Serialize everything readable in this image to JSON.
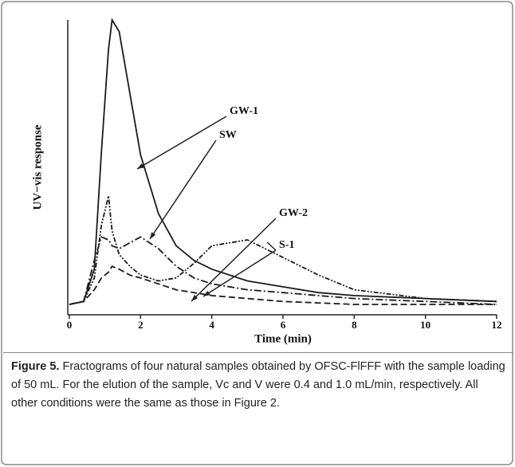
{
  "chart_data": {
    "type": "line",
    "xlabel": "Time (min)",
    "ylabel": "UV−vis response",
    "x": [
      0,
      0.4,
      0.7,
      0.9,
      1.1,
      1.2,
      1.4,
      1.7,
      2,
      2.5,
      3,
      3.5,
      4,
      5,
      6,
      7,
      8,
      10,
      12
    ],
    "xlim": [
      0,
      12
    ],
    "xticks": [
      0,
      2,
      4,
      6,
      8,
      10,
      12
    ],
    "ylim": [
      0,
      100
    ],
    "series": [
      {
        "name": "GW-1",
        "color": "#1a1a1a",
        "values": [
          3,
          4,
          15,
          55,
          90,
          100,
          96,
          75,
          54,
          34,
          23,
          18,
          15,
          11,
          9,
          7,
          6,
          5,
          4
        ]
      },
      {
        "name": "SW",
        "color": "#1a1a1a",
        "values": [
          3,
          4,
          18,
          26,
          25,
          23,
          22,
          24,
          26,
          22,
          16,
          12,
          10,
          8,
          7,
          6,
          5,
          4,
          3
        ]
      },
      {
        "name": "GW-2",
        "color": "#1a1a1a",
        "values": [
          3,
          4,
          8,
          12,
          14,
          16,
          15,
          13,
          12,
          10,
          8,
          7,
          6,
          5,
          4,
          3.5,
          3,
          3,
          3
        ]
      },
      {
        "name": "S-1",
        "color": "#1a1a1a",
        "values": [
          3,
          4,
          12,
          30,
          40,
          28,
          20,
          16,
          13,
          11,
          12,
          17,
          23,
          25,
          19,
          13,
          8,
          5,
          4
        ]
      }
    ]
  },
  "caption": {
    "label": "Figure 5.",
    "text": "Fractograms of four natural samples obtained by OFSC-FlFFF with the sample loading of 50 mL. For the elution of the sample, Vc and V were 0.4 and 1.0 mL/min, respectively. All other conditions were the same as those in Figure 2."
  }
}
